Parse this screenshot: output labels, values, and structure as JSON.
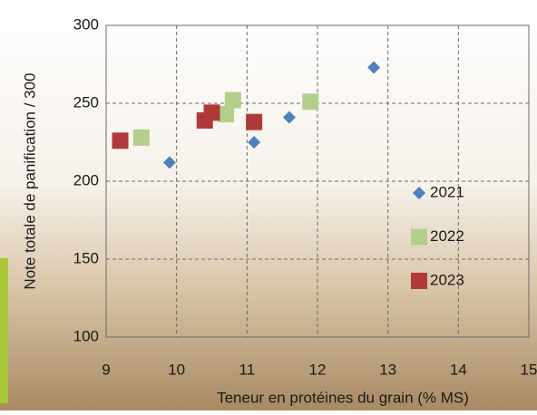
{
  "chart_data": {
    "type": "scatter",
    "x_label": "Teneur en protéines du grain (% MS)",
    "y_label": "Note totale de panification / 300",
    "xlim": [
      9,
      15
    ],
    "xticks": [
      9,
      10,
      11,
      12,
      13,
      14,
      15
    ],
    "ylim": [
      100,
      300
    ],
    "yticks": [
      100,
      150,
      200,
      250,
      300
    ],
    "grid": true,
    "legend": "right",
    "series": [
      {
        "name": "2021",
        "color": "#4f81bd",
        "marker": "diamond",
        "x": [
          9.9,
          11.1,
          11.6,
          12.8
        ],
        "values": [
          212,
          225,
          241,
          273
        ]
      },
      {
        "name": "2022",
        "color": "#b3cf8b",
        "marker": "square",
        "x": [
          9.5,
          10.7,
          10.8,
          11.9
        ],
        "values": [
          228,
          243,
          252,
          251
        ]
      },
      {
        "name": "2023",
        "color": "#b03a3a",
        "marker": "square",
        "x": [
          9.2,
          10.4,
          10.5,
          11.1
        ],
        "values": [
          226,
          239,
          244,
          238
        ]
      }
    ]
  }
}
